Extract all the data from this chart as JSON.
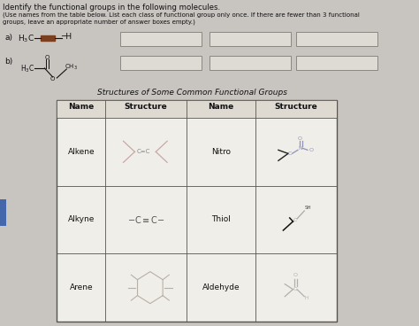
{
  "title_line1": "Identify the functional groups in the following molecules.",
  "title_line2": "(Use names from the table below. List each class of functional group only once. If there are fewer than 3 functional",
  "title_line3": "groups, leave an appropriate number of answer boxes empty.)",
  "bg_color": "#c8c4c0",
  "box_color": "#f0eee8",
  "table_bg": "#e8e4de",
  "table_title": "Structures of Some Common Functional Groups",
  "font_color": "#111111",
  "answer_box_color": "#dedad4",
  "struct_color": "#aaaaaa",
  "nitro_color": "#9090c0",
  "aldehyde_color": "#b0b0b0"
}
